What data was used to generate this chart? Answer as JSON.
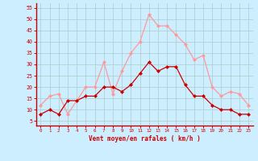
{
  "hours": [
    0,
    1,
    2,
    3,
    4,
    5,
    6,
    7,
    8,
    9,
    10,
    11,
    12,
    13,
    14,
    15,
    16,
    17,
    18,
    19,
    20,
    21,
    22,
    23
  ],
  "wind_avg": [
    8,
    10,
    8,
    14,
    14,
    16,
    16,
    20,
    20,
    18,
    21,
    26,
    31,
    27,
    29,
    29,
    21,
    16,
    16,
    12,
    10,
    10,
    8,
    8
  ],
  "wind_gust": [
    12,
    16,
    17,
    8,
    14,
    20,
    20,
    31,
    17,
    27,
    35,
    40,
    52,
    47,
    47,
    43,
    39,
    32,
    34,
    20,
    16,
    18,
    17,
    12
  ],
  "avg_color": "#cc0000",
  "gust_color": "#ff9999",
  "bg_color": "#cceeff",
  "grid_color": "#aacccc",
  "xlabel": "Vent moyen/en rafales ( km/h )",
  "ylabel_ticks": [
    5,
    10,
    15,
    20,
    25,
    30,
    35,
    40,
    45,
    50,
    55
  ],
  "ylim": [
    3,
    57
  ],
  "xlim": [
    -0.5,
    23.5
  ],
  "axis_color": "#cc0000",
  "xlabel_color": "#cc0000",
  "marker": "D",
  "markersize": 2.0,
  "linewidth": 0.9
}
